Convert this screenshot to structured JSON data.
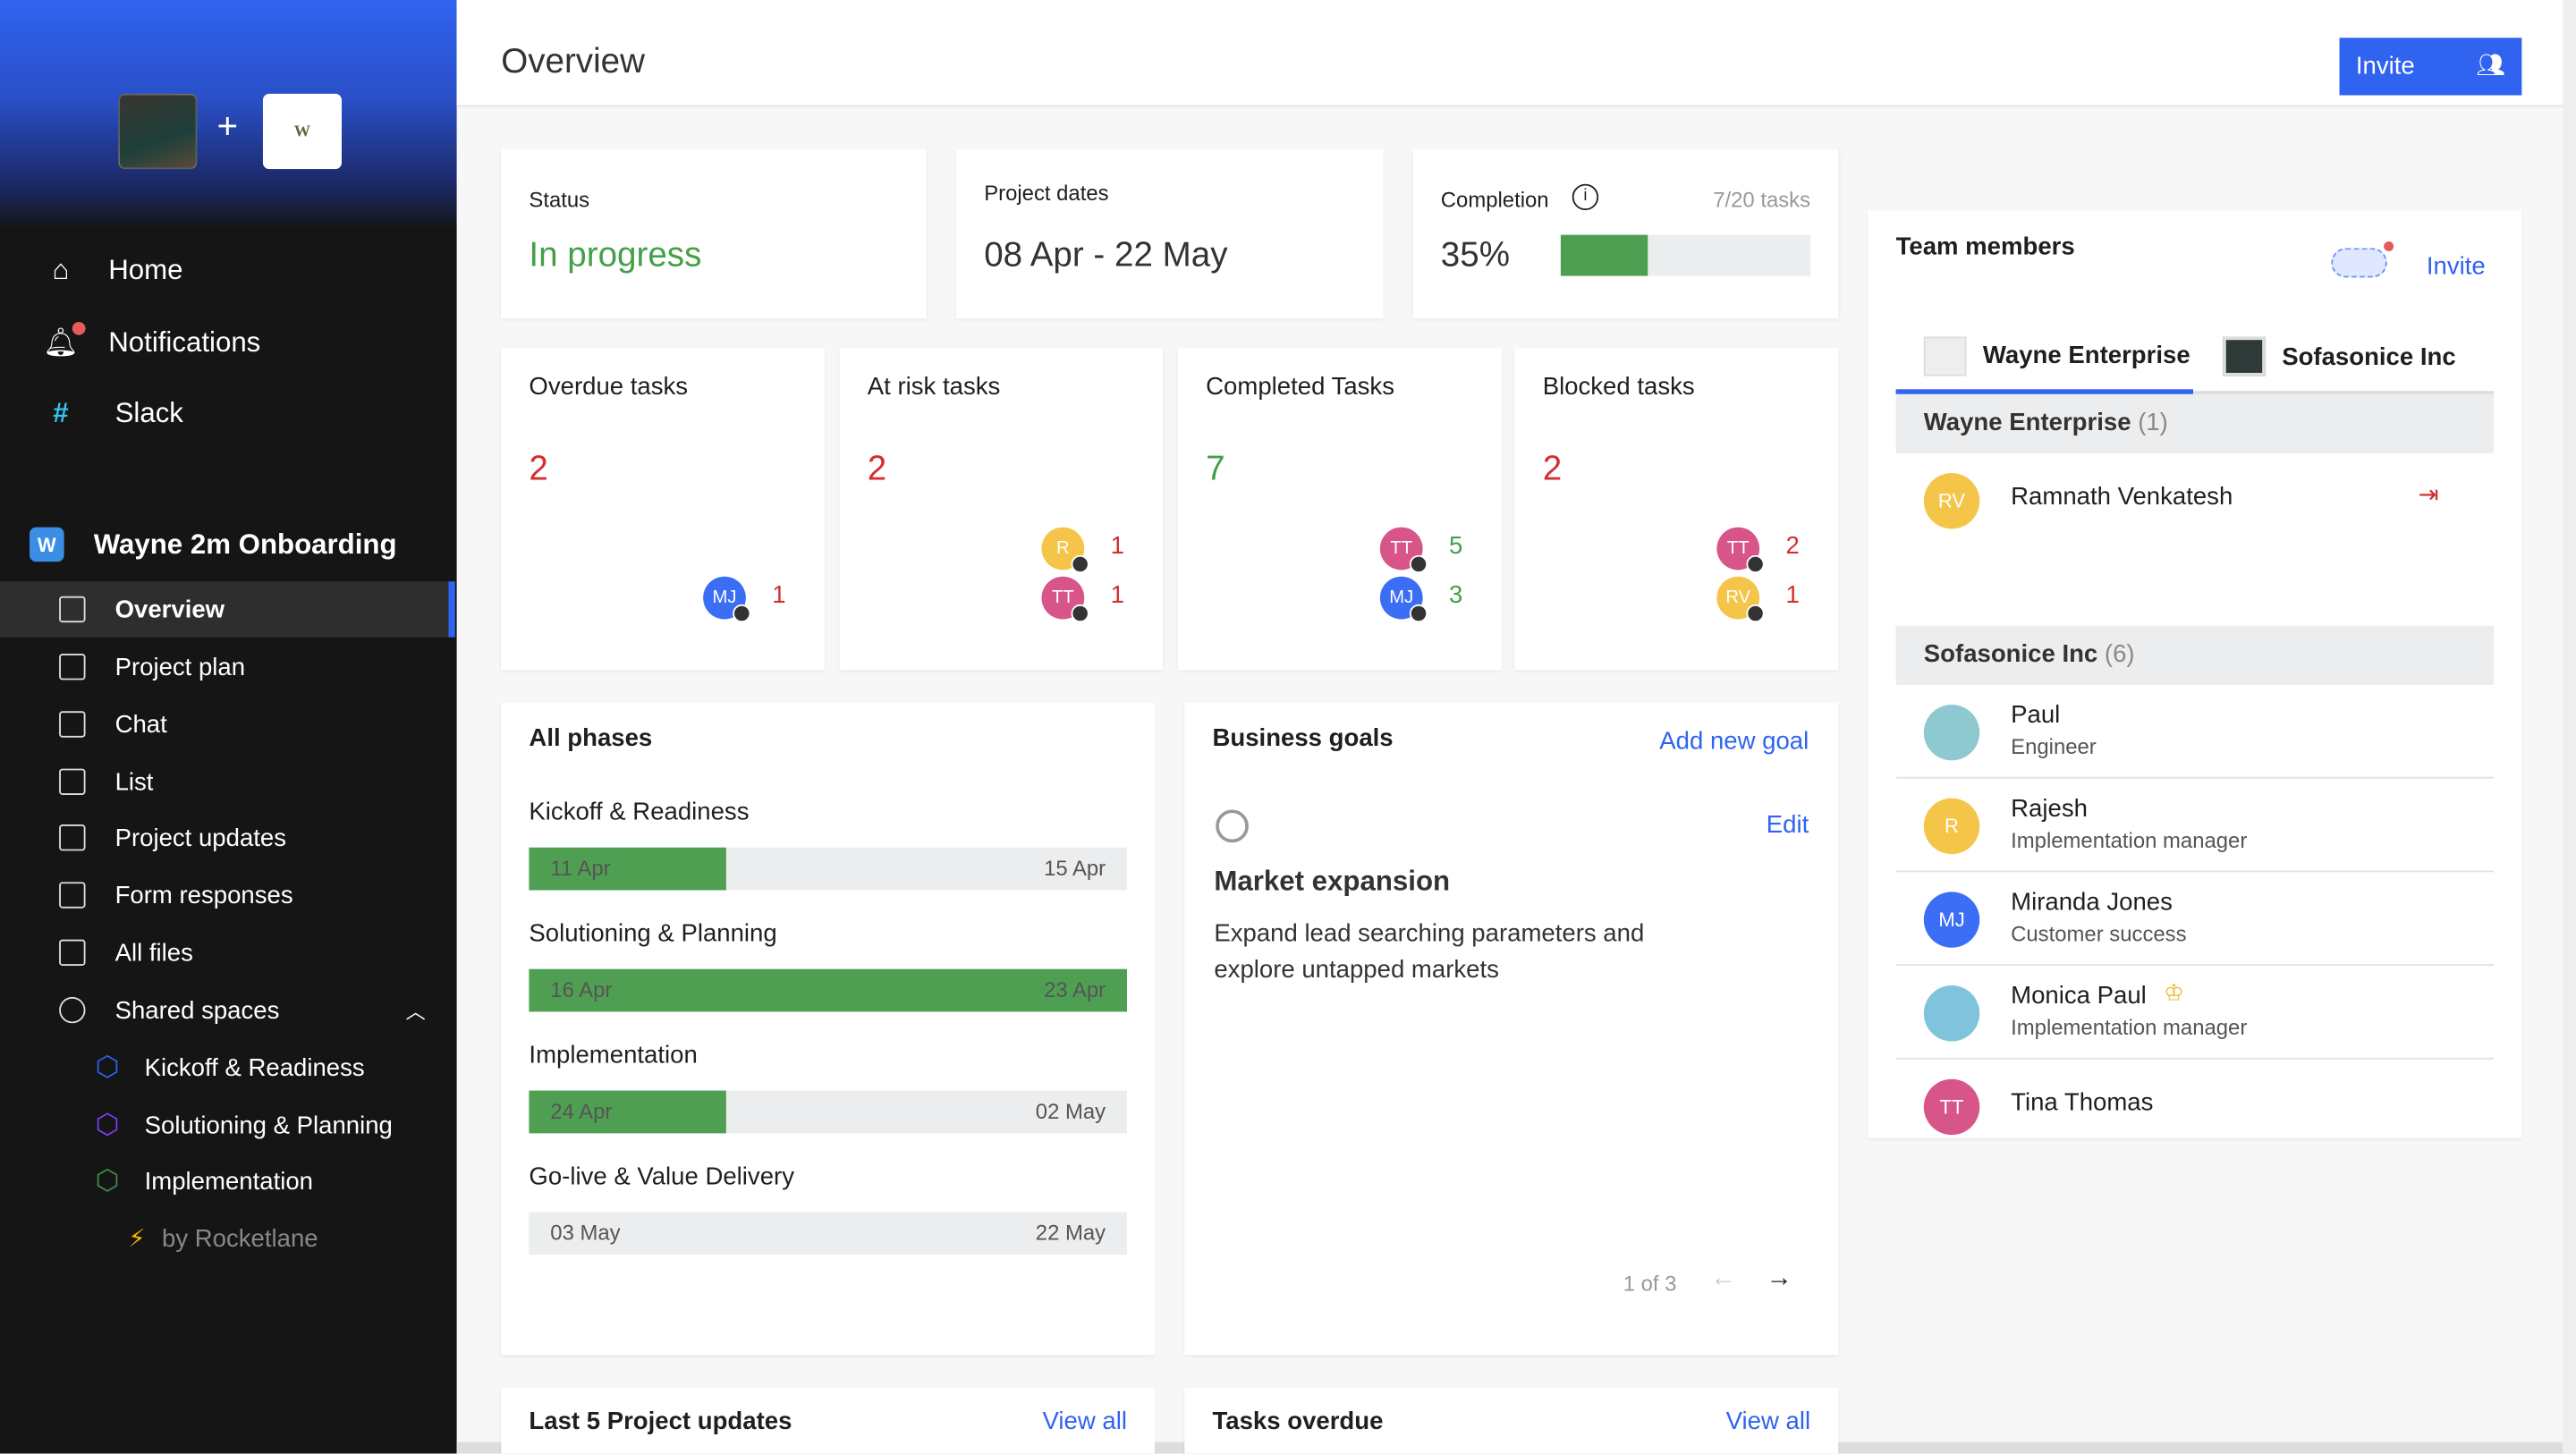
{
  "sidebar": {
    "nav": [
      {
        "label": "Home",
        "icon": "home-icon"
      },
      {
        "label": "Notifications",
        "icon": "bell-icon"
      },
      {
        "label": "Slack",
        "icon": "slack-icon"
      }
    ],
    "project": {
      "badge": "W",
      "title": "Wayne 2m Onboarding"
    },
    "items": [
      {
        "label": "Overview",
        "active": true
      },
      {
        "label": "Project plan"
      },
      {
        "label": "Chat"
      },
      {
        "label": "List"
      },
      {
        "label": "Project updates"
      },
      {
        "label": "Form responses"
      },
      {
        "label": "All files"
      },
      {
        "label": "Shared spaces"
      }
    ],
    "shared": [
      {
        "label": "Kickoff & Readiness",
        "color": "#2f63f0"
      },
      {
        "label": "Solutioning & Planning",
        "color": "#7b3ff2"
      },
      {
        "label": "Implementation",
        "color": "#3f8f4a"
      }
    ],
    "footer": "by Rocketlane"
  },
  "header": {
    "title": "Overview",
    "invite": "Invite"
  },
  "status": {
    "label": "Status",
    "value": "In progress"
  },
  "dates": {
    "label": "Project dates",
    "value": "08 Apr - 22 May"
  },
  "completion": {
    "label": "Completion",
    "tasks": "7/20 tasks",
    "value": "35%",
    "percent": 35
  },
  "task_cards": [
    {
      "label": "Overdue tasks",
      "value": "2",
      "color": "#d32f2f",
      "people": [
        {
          "initials": "MJ",
          "count": "1",
          "bg": "#3b6ef5"
        }
      ]
    },
    {
      "label": "At risk tasks",
      "value": "2",
      "color": "#d32f2f",
      "people": [
        {
          "initials": "R",
          "count": "1",
          "bg": "#f5c54a"
        },
        {
          "initials": "TT",
          "count": "1",
          "bg": "#d8558a"
        }
      ]
    },
    {
      "label": "Completed Tasks",
      "value": "7",
      "color": "#43a047",
      "people": [
        {
          "initials": "TT",
          "count": "5",
          "bg": "#d8558a"
        },
        {
          "initials": "MJ",
          "count": "3",
          "bg": "#3b6ef5"
        }
      ]
    },
    {
      "label": "Blocked tasks",
      "value": "2",
      "color": "#d32f2f",
      "people": [
        {
          "initials": "TT",
          "count": "2",
          "bg": "#d8558a"
        },
        {
          "initials": "RV",
          "count": "1",
          "bg": "#f5c54a"
        }
      ]
    }
  ],
  "phases": {
    "title": "All phases",
    "items": [
      {
        "name": "Kickoff & Readiness",
        "start": "11 Apr",
        "end": "15 Apr",
        "progress": 33
      },
      {
        "name": "Solutioning & Planning",
        "start": "16 Apr",
        "end": "23 Apr",
        "progress": 100
      },
      {
        "name": "Implementation",
        "start": "24 Apr",
        "end": "02 May",
        "progress": 33
      },
      {
        "name": "Go-live & Value Delivery",
        "start": "03 May",
        "end": "22 May",
        "progress": 0
      }
    ]
  },
  "goals": {
    "title": "Business goals",
    "add": "Add new goal",
    "edit": "Edit",
    "goal_title": "Market expansion",
    "goal_desc": "Expand lead searching parameters and explore untapped markets",
    "pager": "1 of 3"
  },
  "updates": {
    "title": "Last 5 Project updates",
    "view_all": "View all"
  },
  "overdue": {
    "title": "Tasks overdue",
    "view_all": "View all"
  },
  "team": {
    "title": "Team members",
    "invite": "Invite",
    "tabs": [
      "Wayne Enterprise",
      "Sofasonice Inc"
    ],
    "groups": [
      {
        "name": "Wayne Enterprise",
        "count": "(1)",
        "members": [
          {
            "initials": "RV",
            "name": "Ramnath Venkatesh",
            "role": "",
            "bg": "#f5c54a"
          }
        ]
      },
      {
        "name": "Sofasonice Inc",
        "count": "(6)",
        "members": [
          {
            "initials": "",
            "name": "Paul",
            "role": "Engineer",
            "bg": "#8fc9d0"
          },
          {
            "initials": "R",
            "name": "Rajesh",
            "role": "Implementation manager",
            "bg": "#f5c54a"
          },
          {
            "initials": "MJ",
            "name": "Miranda Jones",
            "role": "Customer success",
            "bg": "#3b6ef5"
          },
          {
            "initials": "",
            "name": "Monica Paul",
            "role": "Implementation manager",
            "bg": "#7fc3dc"
          },
          {
            "initials": "TT",
            "name": "Tina Thomas",
            "role": "",
            "bg": "#d8558a"
          }
        ]
      }
    ]
  }
}
